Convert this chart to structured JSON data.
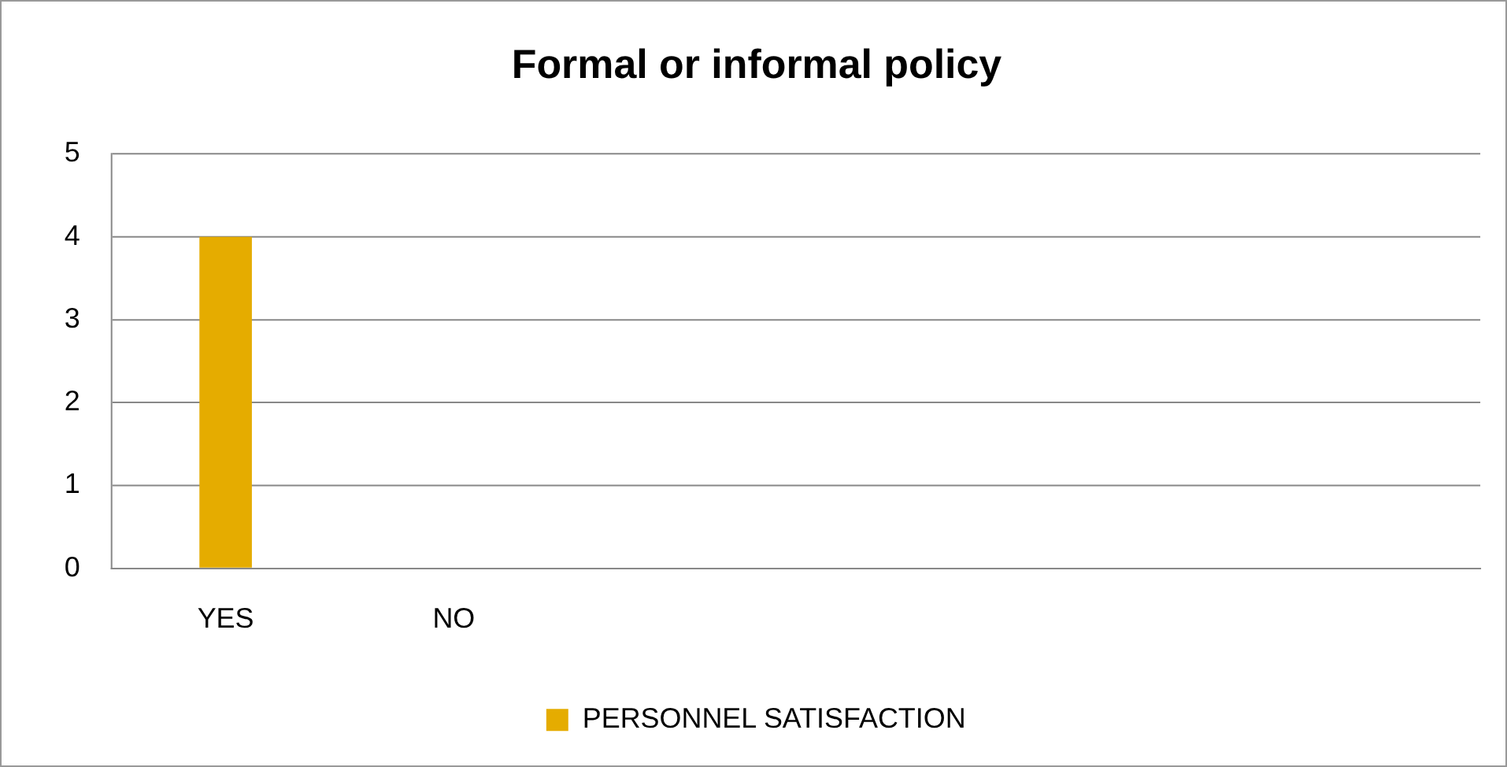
{
  "chart_data": {
    "type": "bar",
    "title": "Formal or informal policy",
    "categories": [
      "YES",
      "NO",
      null,
      null,
      null,
      null
    ],
    "series": [
      {
        "name": "PERSONNEL SATISFACTION",
        "color": "#e5ac00",
        "values": [
          4,
          0,
          null,
          null,
          null,
          null
        ]
      }
    ],
    "ylim": [
      0,
      5
    ],
    "yticks": [
      0,
      1,
      2,
      3,
      4,
      5
    ],
    "grid": "y",
    "legend": "bottom"
  }
}
